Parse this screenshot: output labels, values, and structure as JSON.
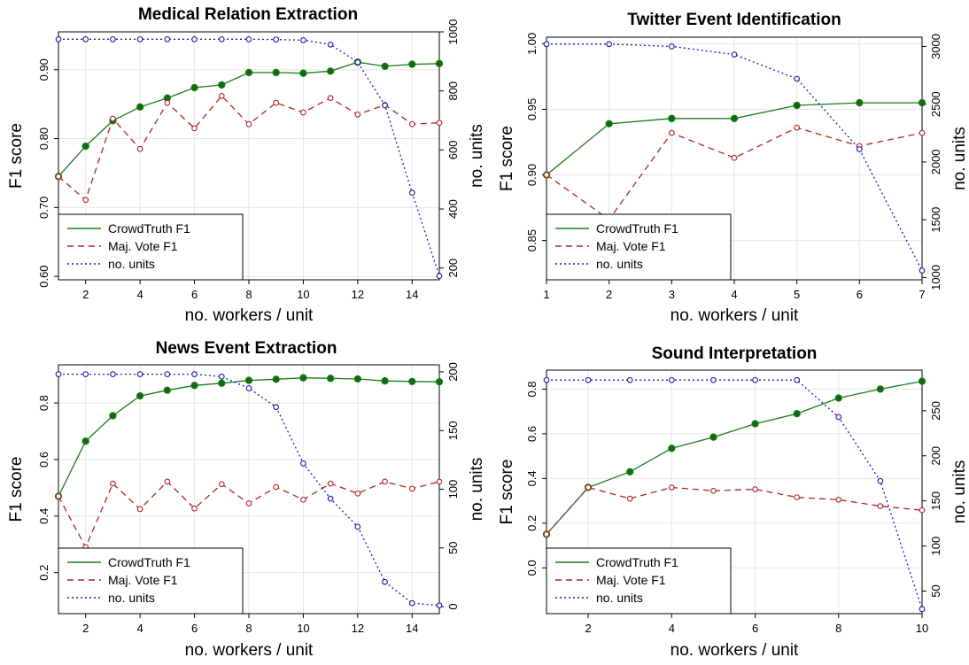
{
  "figure": {
    "legend_labels": [
      "CrowdTruth F1",
      "Maj. Vote F1",
      "no. units"
    ]
  },
  "colors": {
    "crowdtruth": "#1a7a1a",
    "crowdtruth_point": "#0e6b0e",
    "majority_vote": "#b22222",
    "units": "#1a1aaa",
    "grid": "#e6e6e6",
    "axis": "#000000"
  },
  "chart_data": [
    {
      "type": "line",
      "title": "Medical Relation Extraction",
      "xlabel": "no. workers / unit",
      "ylabel": "F1 score",
      "y2label": "no. units",
      "xlim": [
        1,
        15
      ],
      "ylim": [
        0.595,
        0.955
      ],
      "y2lim": [
        160,
        1000
      ],
      "xticks": [
        2,
        4,
        6,
        8,
        10,
        12,
        14
      ],
      "yticks": [
        0.6,
        0.7,
        0.8,
        0.9
      ],
      "ytick_labels": [
        "0.60",
        "0.70",
        "0.80",
        "0.90"
      ],
      "y2ticks": [
        200,
        400,
        600,
        800,
        1000
      ],
      "grid": true,
      "legend": "bottom-left",
      "x": [
        1,
        2,
        3,
        4,
        5,
        6,
        7,
        8,
        9,
        10,
        11,
        12,
        13,
        14,
        15
      ],
      "series": [
        {
          "name": "CrowdTruth F1",
          "axis": "left",
          "values": [
            0.745,
            0.789,
            0.826,
            0.846,
            0.859,
            0.874,
            0.878,
            0.896,
            0.896,
            0.895,
            0.898,
            0.911,
            0.905,
            0.908,
            0.909
          ]
        },
        {
          "name": "Maj. Vote F1",
          "axis": "left",
          "values": [
            0.745,
            0.711,
            0.829,
            0.785,
            0.852,
            0.815,
            0.862,
            0.821,
            0.852,
            0.838,
            0.859,
            0.835,
            0.849,
            0.821,
            0.823
          ]
        },
        {
          "name": "no. units",
          "axis": "right",
          "values": [
            975,
            975,
            975,
            975,
            975,
            975,
            975,
            975,
            974,
            972,
            957,
            897,
            751,
            455,
            173
          ]
        }
      ]
    },
    {
      "type": "line",
      "title": "Twitter Event Identification",
      "xlabel": "no. workers / unit",
      "ylabel": "F1 score",
      "y2label": "no. units",
      "xlim": [
        1,
        7
      ],
      "ylim": [
        0.82,
        1.005
      ],
      "y2lim": [
        980,
        3080
      ],
      "xticks": [
        1,
        2,
        3,
        4,
        5,
        6,
        7
      ],
      "yticks": [
        0.85,
        0.9,
        0.95,
        1.0
      ],
      "ytick_labels": [
        "0.85",
        "0.90",
        "0.95",
        "1.00"
      ],
      "y2ticks": [
        1000,
        1500,
        2000,
        2500,
        3000
      ],
      "grid": true,
      "legend": "bottom-left",
      "x": [
        1,
        2,
        3,
        4,
        5,
        6,
        7
      ],
      "series": [
        {
          "name": "CrowdTruth F1",
          "axis": "left",
          "values": [
            0.9,
            0.939,
            0.943,
            0.943,
            0.953,
            0.955,
            0.955
          ]
        },
        {
          "name": "Maj. Vote F1",
          "axis": "left",
          "values": [
            0.9,
            0.866,
            0.932,
            0.913,
            0.936,
            0.922,
            0.932
          ]
        },
        {
          "name": "no. units",
          "axis": "right",
          "values": [
            3020,
            3020,
            3000,
            2930,
            2720,
            2110,
            1060
          ]
        }
      ]
    },
    {
      "type": "line",
      "title": "News Event Extraction",
      "xlabel": "no. workers / unit",
      "ylabel": "F1 score",
      "y2label": "no. units",
      "xlim": [
        1,
        15
      ],
      "ylim": [
        0.055,
        0.935
      ],
      "y2lim": [
        -6,
        206
      ],
      "xticks": [
        2,
        4,
        6,
        8,
        10,
        12,
        14
      ],
      "yticks": [
        0.2,
        0.4,
        0.6,
        0.8
      ],
      "ytick_labels": [
        "0.2",
        "0.4",
        "0.6",
        "0.8"
      ],
      "y2ticks": [
        0,
        50,
        100,
        150,
        200
      ],
      "grid": true,
      "legend": "bottom-left",
      "x": [
        1,
        2,
        3,
        4,
        5,
        6,
        7,
        8,
        9,
        10,
        11,
        12,
        13,
        14,
        15
      ],
      "series": [
        {
          "name": "CrowdTruth F1",
          "axis": "left",
          "values": [
            0.47,
            0.665,
            0.755,
            0.825,
            0.845,
            0.862,
            0.87,
            0.88,
            0.884,
            0.889,
            0.887,
            0.885,
            0.878,
            0.876,
            0.875
          ]
        },
        {
          "name": "Maj. Vote F1",
          "axis": "left",
          "values": [
            0.47,
            0.29,
            0.515,
            0.425,
            0.522,
            0.427,
            0.513,
            0.445,
            0.503,
            0.458,
            0.515,
            0.48,
            0.522,
            0.497,
            0.522
          ]
        },
        {
          "name": "no. units",
          "axis": "right",
          "values": [
            198,
            198,
            198,
            198,
            198,
            198,
            196,
            186,
            170,
            122,
            92,
            68,
            21,
            3,
            1
          ]
        }
      ]
    },
    {
      "type": "line",
      "title": "Sound Interpretation",
      "xlabel": "no. workers / unit",
      "ylabel": "F1 score",
      "y2label": "no. units",
      "xlim": [
        1,
        10
      ],
      "ylim": [
        -0.205,
        0.885
      ],
      "y2lim": [
        25,
        295
      ],
      "xticks": [
        2,
        4,
        6,
        8,
        10
      ],
      "yticks": [
        0.0,
        0.2,
        0.4,
        0.6,
        0.8
      ],
      "ytick_labels": [
        "0.0",
        "0.2",
        "0.4",
        "0.6",
        "0.8"
      ],
      "y2ticks": [
        50,
        100,
        150,
        200,
        250
      ],
      "grid": true,
      "legend": "bottom-left",
      "x": [
        1,
        2,
        3,
        4,
        5,
        6,
        7,
        8,
        9,
        10
      ],
      "series": [
        {
          "name": "CrowdTruth F1",
          "axis": "left",
          "values": [
            0.15,
            0.36,
            0.43,
            0.535,
            0.585,
            0.645,
            0.69,
            0.76,
            0.8,
            0.835
          ]
        },
        {
          "name": "Maj. Vote F1",
          "axis": "left",
          "values": [
            0.15,
            0.36,
            0.31,
            0.36,
            0.345,
            0.352,
            0.316,
            0.305,
            0.276,
            0.258
          ]
        },
        {
          "name": "no. units",
          "axis": "right",
          "values": [
            284,
            284,
            284,
            284,
            284,
            284,
            284,
            243,
            172,
            30
          ]
        }
      ]
    }
  ]
}
